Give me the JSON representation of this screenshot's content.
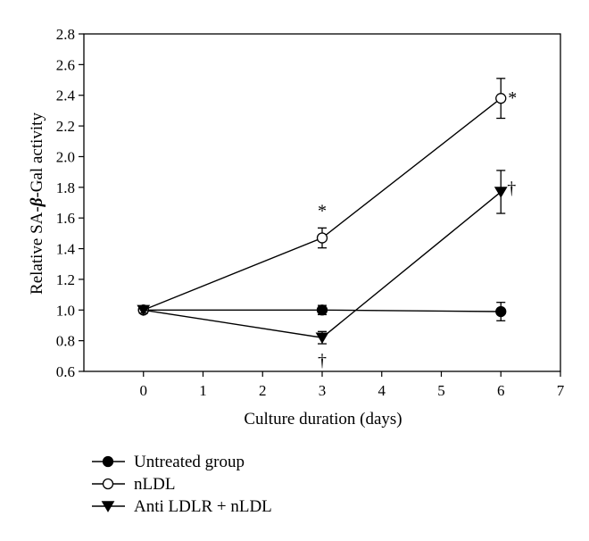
{
  "chart_data": {
    "type": "line",
    "xlabel": "Culture duration (days)",
    "ylabel": "Relative SA-β-Gal activity",
    "ylabel_parts": [
      "Relative SA-",
      "β",
      "-Gal activity"
    ],
    "xlim": [
      -1,
      7
    ],
    "ylim": [
      0.6,
      2.8
    ],
    "x_ticks": [
      "0",
      "1",
      "2",
      "3",
      "4",
      "5",
      "6",
      "7"
    ],
    "y_ticks": [
      "0.6",
      "0.8",
      "1.0",
      "1.2",
      "1.4",
      "1.6",
      "1.8",
      "2.0",
      "2.2",
      "2.4",
      "2.6",
      "2.8"
    ],
    "grid": false,
    "legend_position": "below",
    "series": [
      {
        "name": "Untreated group",
        "marker": "filled-circle",
        "x": [
          0,
          3,
          6
        ],
        "y": [
          1.0,
          1.0,
          0.99
        ],
        "err": [
          0.02,
          0.03,
          0.06
        ],
        "annotations": [
          "",
          "",
          ""
        ]
      },
      {
        "name": "nLDL",
        "marker": "open-circle",
        "x": [
          0,
          3,
          6
        ],
        "y": [
          1.0,
          1.47,
          2.38
        ],
        "err": [
          0.02,
          0.065,
          0.13
        ],
        "annotations": [
          "",
          "*",
          "*"
        ]
      },
      {
        "name": "Anti LDLR + nLDL",
        "marker": "filled-triangle-down",
        "x": [
          0,
          3,
          6
        ],
        "y": [
          1.0,
          0.82,
          1.77
        ],
        "err": [
          0.02,
          0.04,
          0.14
        ],
        "annotations": [
          "",
          "†",
          "†"
        ]
      }
    ]
  }
}
